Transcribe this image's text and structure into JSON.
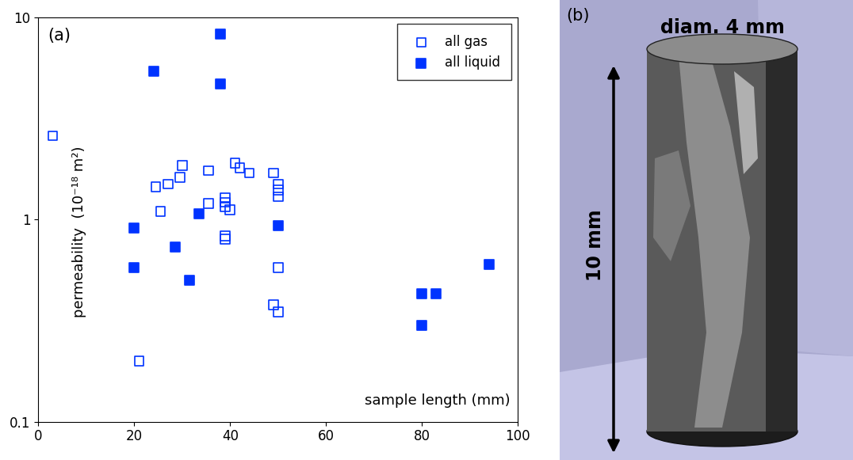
{
  "chart_data": {
    "type": "scatter",
    "panel_label": "(a)",
    "x_label": "sample length (mm)",
    "y_label": "permeability  (10⁻¹⁸ m²)",
    "xlim": [
      0,
      100
    ],
    "xticks": [
      0,
      20,
      40,
      60,
      80,
      100
    ],
    "ylim": [
      0.1,
      10
    ],
    "yticks": [
      0.1,
      1,
      10
    ],
    "log": "y",
    "legend": "upper right",
    "series": [
      {
        "name": "all gas",
        "color": "#0033ff",
        "marker": "open square",
        "x": [
          3,
          21,
          24.5,
          25.5,
          27,
          29.5,
          30,
          35.5,
          35.5,
          39,
          39,
          39,
          40,
          39,
          39,
          41,
          42,
          44,
          49,
          50,
          50,
          50,
          50,
          49,
          50
        ],
        "values": [
          2.6,
          0.2,
          1.45,
          1.1,
          1.5,
          1.62,
          1.85,
          1.75,
          1.2,
          1.28,
          1.22,
          1.16,
          1.12,
          0.83,
          0.8,
          1.9,
          1.8,
          1.7,
          1.7,
          1.5,
          1.4,
          1.3,
          0.58,
          0.38,
          0.35
        ]
      },
      {
        "name": "all liquid",
        "color": "#0033ff",
        "marker": "square",
        "x": [
          24,
          38,
          38,
          20,
          20,
          28.5,
          31.5,
          33.5,
          50,
          80,
          83,
          80,
          94
        ],
        "values": [
          5.4,
          8.3,
          4.7,
          0.91,
          0.58,
          0.73,
          0.5,
          1.07,
          0.93,
          0.43,
          0.43,
          0.3,
          0.6
        ]
      }
    ]
  },
  "image": {
    "panel_label": "(b)",
    "diameter": "diam. 4 mm",
    "length": "10 mm"
  }
}
